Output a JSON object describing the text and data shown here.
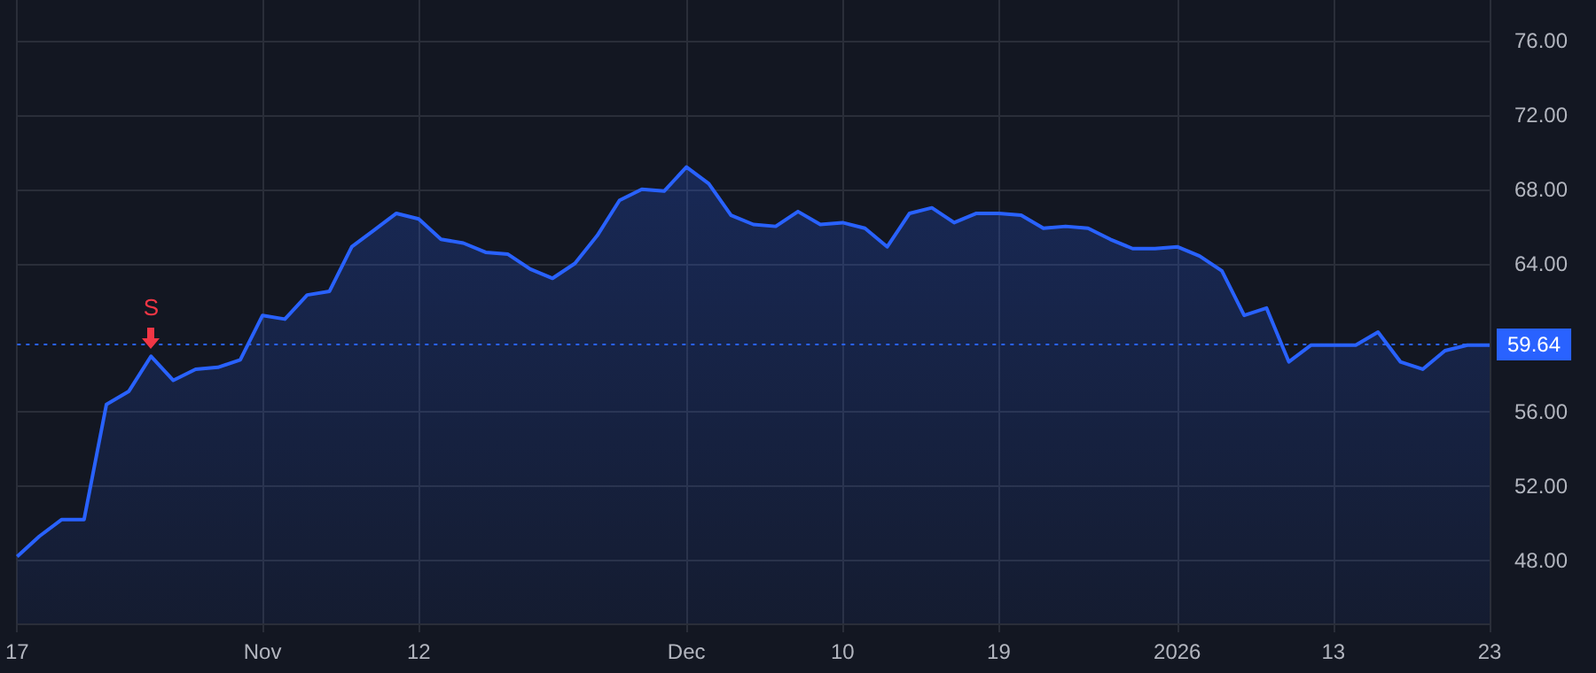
{
  "chart_data": {
    "type": "area",
    "categories": [
      "17",
      null,
      null,
      null,
      null,
      null,
      null,
      null,
      null,
      null,
      null,
      "Nov",
      null,
      null,
      null,
      null,
      null,
      null,
      "12",
      null,
      null,
      null,
      null,
      null,
      null,
      null,
      null,
      null,
      null,
      null,
      "Dec",
      null,
      null,
      null,
      null,
      null,
      null,
      "10",
      null,
      null,
      null,
      null,
      null,
      null,
      "19",
      null,
      null,
      null,
      null,
      null,
      null,
      null,
      "2026",
      null,
      null,
      null,
      null,
      null,
      null,
      "13",
      null,
      null,
      null,
      null,
      null,
      null,
      "23"
    ],
    "series": [
      {
        "color": "#2962ff",
        "values": [
          48.2,
          49.3,
          50.2,
          50.2,
          56.4,
          57.1,
          59.0,
          57.7,
          58.3,
          58.4,
          58.8,
          61.2,
          61.0,
          62.3,
          62.5,
          64.9,
          65.8,
          66.7,
          66.4,
          65.3,
          65.1,
          64.6,
          64.5,
          63.7,
          63.2,
          64.0,
          65.5,
          67.4,
          68.0,
          67.9,
          69.2,
          68.3,
          66.6,
          66.1,
          66.0,
          66.8,
          66.1,
          66.2,
          65.9,
          64.9,
          66.7,
          67.0,
          66.2,
          66.7,
          66.7,
          66.6,
          65.9,
          66.0,
          65.9,
          65.3,
          64.8,
          64.8,
          64.9,
          64.4,
          63.6,
          61.2,
          61.6,
          58.7,
          59.6,
          59.6,
          59.6,
          60.3,
          58.7,
          58.3,
          59.3,
          59.6,
          59.6
        ]
      }
    ],
    "ylim": [
      44.6,
      78.2
    ],
    "yticks": [
      {
        "value": 48,
        "label": "48.00"
      },
      {
        "value": 52,
        "label": "52.00"
      },
      {
        "value": 56,
        "label": "56.00"
      },
      {
        "value": 64,
        "label": "64.00"
      },
      {
        "value": 68,
        "label": "68.00"
      },
      {
        "value": 72,
        "label": "72.00"
      },
      {
        "value": 76,
        "label": "76.00"
      }
    ],
    "grid": true,
    "ref_lines": [
      {
        "axis": "y",
        "value": 59.64,
        "label": "59.64",
        "color": "#2962ff",
        "line_style": "dotted"
      }
    ],
    "annotations": [
      {
        "text": "S",
        "y": 59.0
      }
    ]
  }
}
